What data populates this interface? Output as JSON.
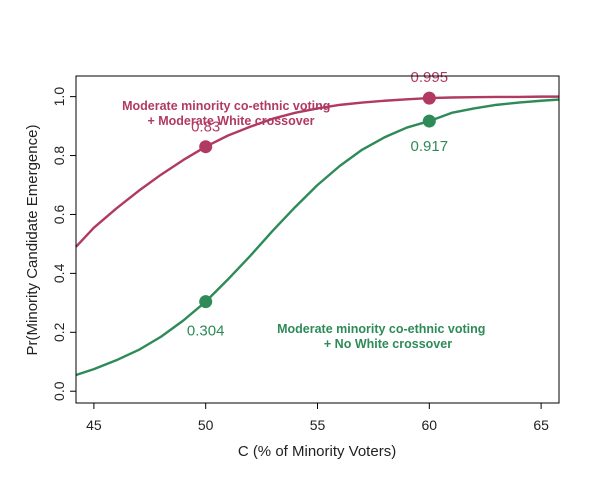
{
  "chart_data": {
    "type": "line",
    "xlabel": "C (% of Minority Voters)",
    "ylabel": "Pr(Minority Candidate Emergence)",
    "xlim": [
      44.2,
      65.8
    ],
    "ylim": [
      -0.04,
      1.07
    ],
    "x_ticks": [
      "45",
      "50",
      "55",
      "60",
      "65"
    ],
    "y_ticks": [
      "0.0",
      "0.2",
      "0.4",
      "0.6",
      "0.8",
      "1.0"
    ],
    "grid": false,
    "series": [
      {
        "name_lines": [
          "Moderate minority co-ethnic voting",
          "+ Moderate White crossover"
        ],
        "color": "#B03A62",
        "x": [
          44.2,
          45,
          46,
          47,
          48,
          49,
          50,
          51,
          52,
          53,
          54,
          55,
          56,
          57,
          58,
          59,
          60,
          61,
          62,
          63,
          64,
          65,
          65.8
        ],
        "y": [
          0.49,
          0.555,
          0.62,
          0.68,
          0.735,
          0.785,
          0.83,
          0.868,
          0.898,
          0.925,
          0.945,
          0.96,
          0.972,
          0.98,
          0.986,
          0.991,
          0.995,
          0.997,
          0.998,
          0.999,
          0.999,
          1.0,
          1.0
        ],
        "points": [
          {
            "x": 50,
            "y": 0.83,
            "label": "0.83"
          },
          {
            "x": 60,
            "y": 0.995,
            "label": "0.995"
          }
        ]
      },
      {
        "name_lines": [
          "Moderate minority co-ethnic voting",
          "+ No White crossover"
        ],
        "color": "#2E8B57",
        "x": [
          44.2,
          45,
          46,
          47,
          48,
          49,
          50,
          51,
          52,
          53,
          54,
          55,
          56,
          57,
          58,
          59,
          60,
          61,
          62,
          63,
          64,
          65,
          65.8
        ],
        "y": [
          0.055,
          0.075,
          0.105,
          0.14,
          0.185,
          0.24,
          0.304,
          0.38,
          0.46,
          0.545,
          0.625,
          0.7,
          0.765,
          0.82,
          0.862,
          0.895,
          0.917,
          0.945,
          0.96,
          0.972,
          0.98,
          0.986,
          0.99
        ],
        "points": [
          {
            "x": 50,
            "y": 0.304,
            "label": "0.304"
          },
          {
            "x": 60,
            "y": 0.917,
            "label": "0.917"
          }
        ]
      }
    ]
  }
}
